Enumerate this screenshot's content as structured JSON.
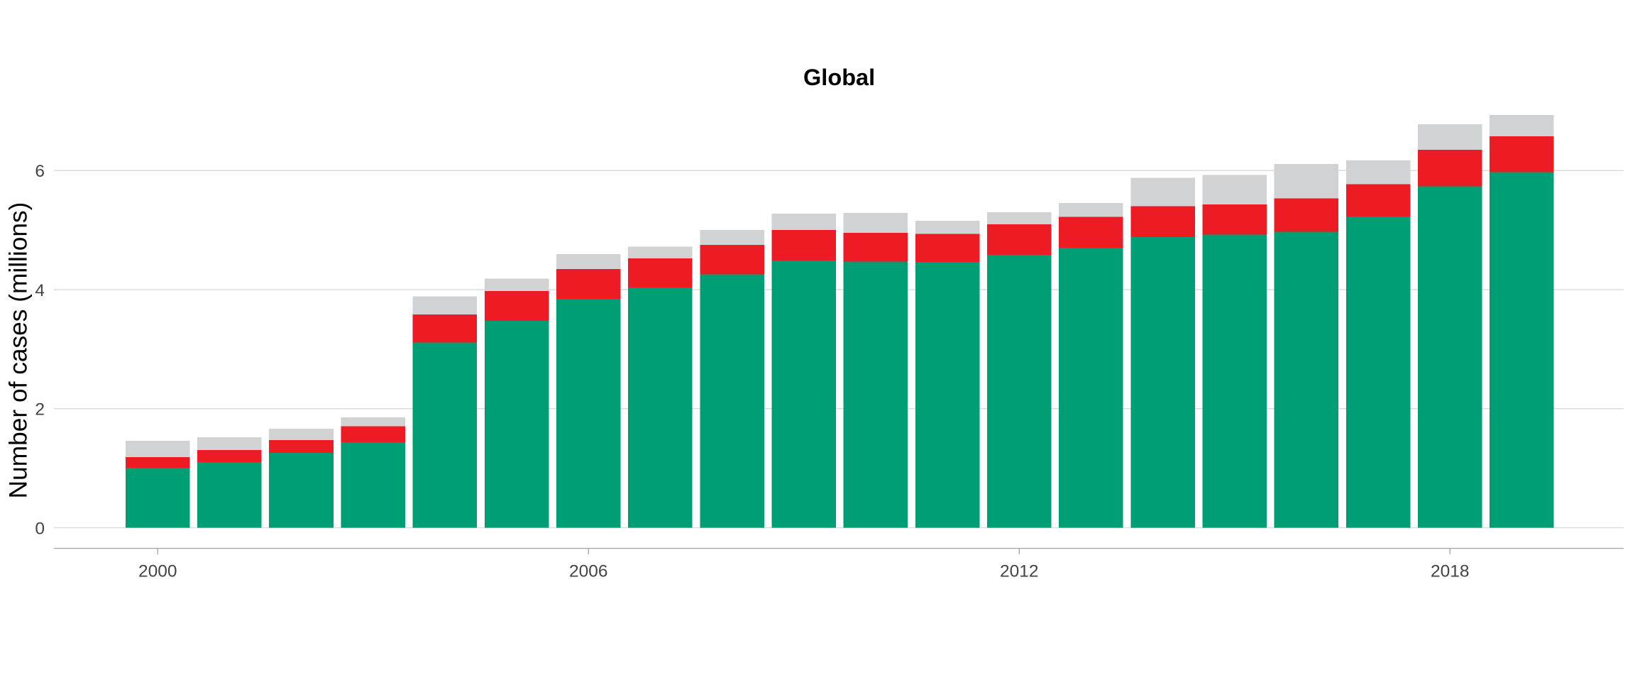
{
  "chart_data": {
    "type": "bar",
    "stacked": true,
    "title": "Global",
    "ylabel": "Number of cases (millions)",
    "xlabel": "",
    "categories": [
      2000,
      2001,
      2002,
      2003,
      2004,
      2005,
      2006,
      2007,
      2008,
      2009,
      2010,
      2011,
      2012,
      2013,
      2014,
      2015,
      2016,
      2017,
      2018,
      2019
    ],
    "series": [
      {
        "name": "bottom-green",
        "color": "#009E74",
        "values": [
          1.005,
          1.103,
          1.259,
          1.436,
          3.111,
          3.476,
          3.845,
          4.036,
          4.258,
          4.49,
          4.469,
          4.466,
          4.583,
          4.705,
          4.881,
          4.923,
          4.973,
          5.23,
          5.736,
          5.971
        ]
      },
      {
        "name": "middle-red",
        "color": "#ED1C24",
        "values": [
          0.18,
          0.204,
          0.215,
          0.269,
          0.47,
          0.499,
          0.501,
          0.489,
          0.496,
          0.511,
          0.484,
          0.469,
          0.517,
          0.516,
          0.52,
          0.507,
          0.56,
          0.539,
          0.615,
          0.608
        ]
      },
      {
        "name": "top-grey",
        "color": "#D1D2D4",
        "values": [
          0.274,
          0.212,
          0.188,
          0.147,
          0.307,
          0.21,
          0.249,
          0.197,
          0.247,
          0.274,
          0.334,
          0.223,
          0.201,
          0.235,
          0.479,
          0.498,
          0.575,
          0.404,
          0.428,
          0.356
        ]
      }
    ],
    "totals": [
      1.459,
      1.519,
      1.662,
      1.852,
      3.888,
      4.185,
      4.595,
      4.722,
      5.001,
      5.275,
      5.287,
      5.158,
      5.301,
      5.456,
      5.88,
      5.928,
      6.108,
      6.173,
      6.779,
      6.935
    ],
    "ylim": [
      0,
      7.28
    ],
    "yticks": [
      0,
      2,
      4,
      6
    ],
    "xticks": [
      2000,
      2006,
      2012,
      2018
    ],
    "grid": true,
    "legend_position": "none",
    "colors": {
      "background": "#FFFFFF",
      "gridline": "#DADADA",
      "axis_line": "#A3A3A3",
      "tick_label": "#444444",
      "title_text": "#000000",
      "axis_title_text": "#000000"
    }
  }
}
